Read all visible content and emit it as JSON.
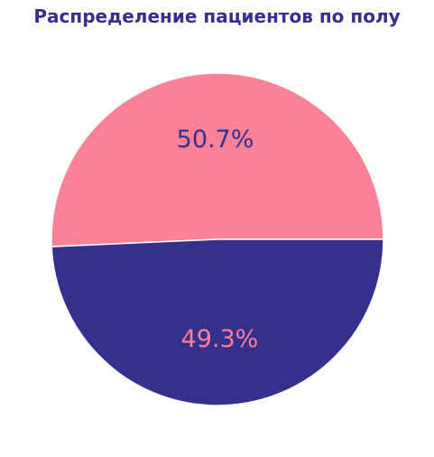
{
  "chart_data": {
    "type": "pie",
    "title": "Распределение пациентов по полу",
    "slices": [
      {
        "value": 50.7,
        "label": "50.7%",
        "color": "#fb8197",
        "label_color": "#34308c"
      },
      {
        "value": 49.3,
        "label": "49.3%",
        "color": "#34308c",
        "label_color": "#fb8197"
      }
    ],
    "start_angle": 0,
    "direction": "counterclockwise",
    "edge_color": "#ffffff",
    "legend": "none"
  }
}
